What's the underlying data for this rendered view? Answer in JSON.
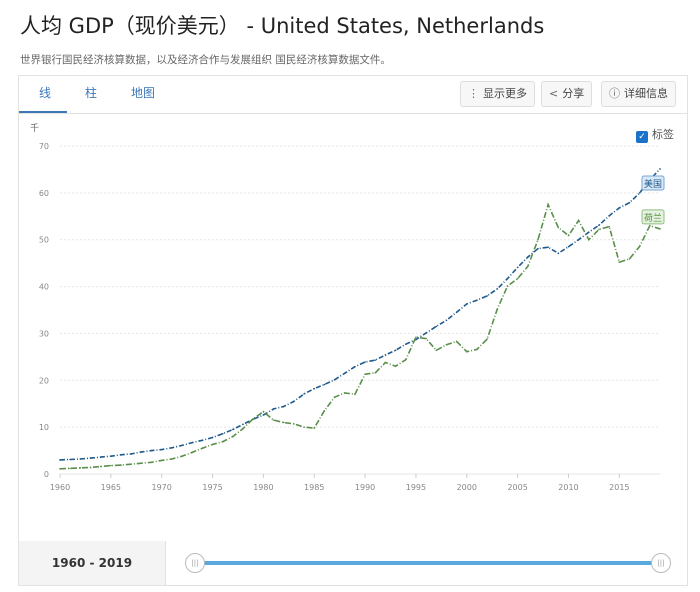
{
  "title": "人均 GDP（现价美元） - United States, Netherlands",
  "subtitle": "世界银行国民经济核算数据，以及经济合作与发展组织 国民经济核算数据文件。",
  "tabs": [
    "线",
    "柱",
    "地图"
  ],
  "toolbar": {
    "more": "显示更多",
    "share": "分享",
    "details": "详细信息"
  },
  "labels_toggle": "标签",
  "range_label": "1960 - 2019",
  "colors": {
    "us": "#1f5a8c",
    "nl": "#5a8f4a",
    "accent": "#3a78b8"
  },
  "chart_data": {
    "type": "line",
    "ylabel": "千",
    "ylim": [
      0,
      70
    ],
    "yticks": [
      "0",
      "10",
      "20",
      "30",
      "40",
      "50",
      "60",
      "70"
    ],
    "xlim": [
      1960,
      2019
    ],
    "xticks": [
      "1960",
      "1965",
      "1970",
      "1975",
      "1980",
      "1985",
      "1990",
      "1995",
      "2000",
      "2005",
      "2010",
      "2015"
    ],
    "x": [
      1960,
      1961,
      1962,
      1963,
      1964,
      1965,
      1966,
      1967,
      1968,
      1969,
      1970,
      1971,
      1972,
      1973,
      1974,
      1975,
      1976,
      1977,
      1978,
      1979,
      1980,
      1981,
      1982,
      1983,
      1984,
      1985,
      1986,
      1987,
      1988,
      1989,
      1990,
      1991,
      1992,
      1993,
      1994,
      1995,
      1996,
      1997,
      1998,
      1999,
      2000,
      2001,
      2002,
      2003,
      2004,
      2005,
      2006,
      2007,
      2008,
      2009,
      2010,
      2011,
      2012,
      2013,
      2014,
      2015,
      2016,
      2017,
      2018,
      2019
    ],
    "series": [
      {
        "name": "美国",
        "values": [
          3.0,
          3.1,
          3.2,
          3.4,
          3.6,
          3.8,
          4.1,
          4.3,
          4.7,
          5.0,
          5.2,
          5.6,
          6.1,
          6.7,
          7.2,
          7.8,
          8.6,
          9.5,
          10.6,
          11.7,
          12.6,
          13.9,
          14.4,
          15.5,
          17.1,
          18.2,
          19.1,
          20.1,
          21.5,
          22.9,
          23.9,
          24.3,
          25.4,
          26.4,
          27.7,
          28.7,
          30.1,
          31.5,
          32.8,
          34.5,
          36.3,
          37.1,
          38.0,
          39.5,
          41.7,
          44.1,
          46.3,
          48.1,
          48.4,
          47.1,
          48.5,
          50.0,
          51.6,
          53.1,
          55.1,
          56.8,
          57.9,
          60.0,
          62.8,
          65.1
        ]
      },
      {
        "name": "荷兰",
        "values": [
          1.1,
          1.2,
          1.3,
          1.4,
          1.6,
          1.8,
          1.9,
          2.1,
          2.3,
          2.5,
          2.9,
          3.2,
          3.8,
          4.6,
          5.5,
          6.3,
          6.9,
          8.0,
          9.7,
          11.8,
          13.3,
          11.5,
          11.0,
          10.7,
          10.0,
          9.8,
          13.5,
          16.4,
          17.3,
          17.0,
          21.3,
          21.6,
          23.8,
          23.0,
          24.4,
          29.2,
          28.9,
          26.4,
          27.6,
          28.3,
          26.1,
          26.6,
          28.8,
          35.2,
          40.1,
          41.7,
          44.3,
          50.0,
          57.5,
          52.6,
          50.9,
          54.1,
          50.0,
          52.2,
          52.8,
          45.2,
          45.9,
          48.6,
          53.0,
          52.3
        ]
      }
    ]
  }
}
